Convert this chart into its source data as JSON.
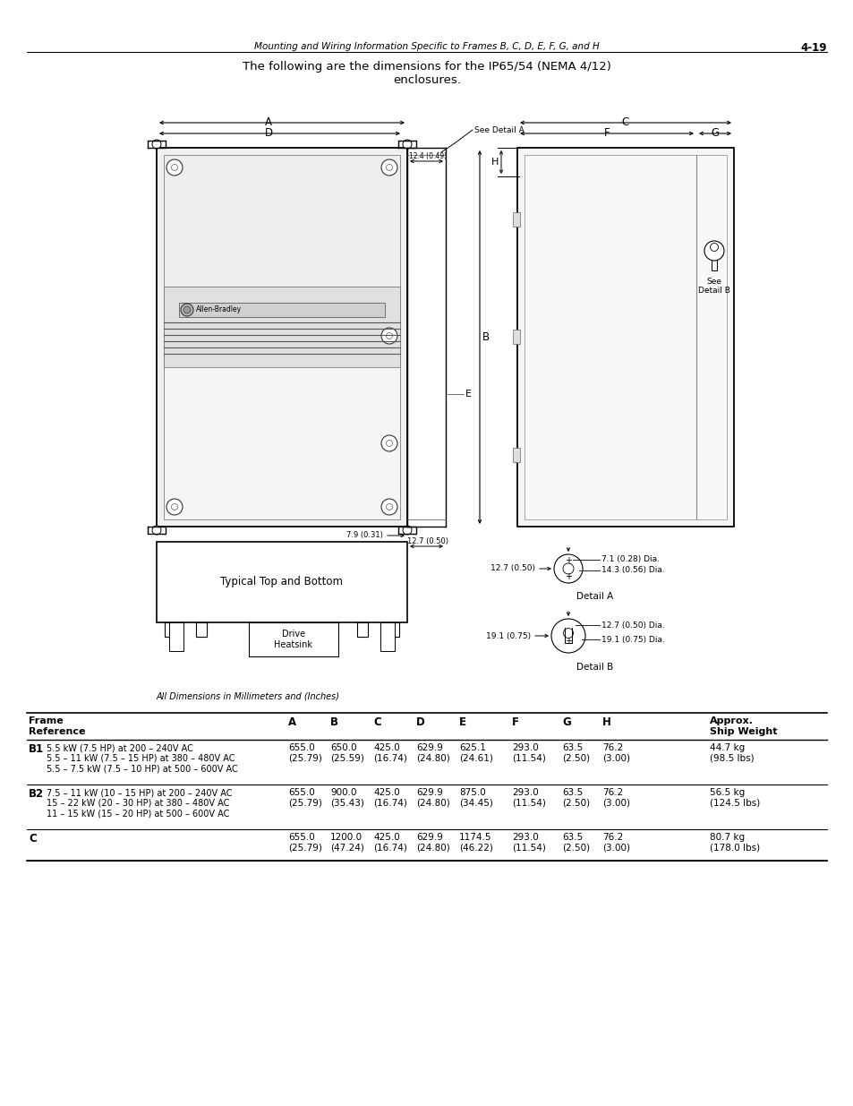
{
  "page_header_left": "Mounting and Wiring Information Specific to Frames B, C, D, E, F, G, and H",
  "page_header_right": "4-19",
  "title": "The following are the dimensions for the IP65/54 (NEMA 4/12)\nenclosures.",
  "footer_note": "All Dimensions in Millimeters and (Inches)",
  "bg_color": "#ffffff",
  "table_rows": [
    {
      "frame_label": "B1",
      "description": "5.5 kW (7.5 HP) at 200 – 240V AC\n5.5 – 11 kW (7.5 – 15 HP) at 380 – 480V AC\n5.5 – 7.5 kW (7.5 – 10 HP) at 500 – 600V AC",
      "A": "655.0\n(25.79)",
      "B": "650.0\n(25.59)",
      "C": "425.0\n(16.74)",
      "D": "629.9\n(24.80)",
      "E": "625.1\n(24.61)",
      "F": "293.0\n(11.54)",
      "G": "63.5\n(2.50)",
      "H": "76.2\n(3.00)",
      "weight": "44.7 kg\n(98.5 lbs)"
    },
    {
      "frame_label": "B2",
      "description": "7.5 – 11 kW (10 – 15 HP) at 200 – 240V AC\n15 – 22 kW (20 – 30 HP) at 380 – 480V AC\n11 – 15 kW (15 – 20 HP) at 500 – 600V AC",
      "A": "655.0\n(25.79)",
      "B": "900.0\n(35.43)",
      "C": "425.0\n(16.74)",
      "D": "629.9\n(24.80)",
      "E": "875.0\n(34.45)",
      "F": "293.0\n(11.54)",
      "G": "63.5\n(2.50)",
      "H": "76.2\n(3.00)",
      "weight": "56.5 kg\n(124.5 lbs)"
    },
    {
      "frame_label": "C",
      "description": "",
      "A": "655.0\n(25.79)",
      "B": "1200.0\n(47.24)",
      "C": "425.0\n(16.74)",
      "D": "629.9\n(24.80)",
      "E": "1174.5\n(46.22)",
      "F": "293.0\n(11.54)",
      "G": "63.5\n(2.50)",
      "H": "76.2\n(3.00)",
      "weight": "80.7 kg\n(178.0 lbs)"
    }
  ]
}
